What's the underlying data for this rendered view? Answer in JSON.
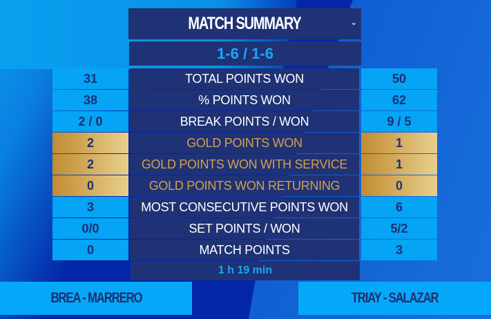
{
  "header": {
    "title": "MATCH SUMMARY",
    "dropdown_icon": "chevron-down-icon"
  },
  "score": "1-6 / 1-6",
  "stats": [
    {
      "label": "TOTAL POINTS WON",
      "left": "31",
      "right": "50",
      "type": "normal"
    },
    {
      "label": "% POINTS WON",
      "left": "38",
      "right": "62",
      "type": "normal"
    },
    {
      "label": "BREAK POINTS / WON",
      "left": "2 / 0",
      "right": "9 / 5",
      "type": "normal"
    },
    {
      "label": "GOLD POINTS WON",
      "left": "2",
      "right": "1",
      "type": "gold"
    },
    {
      "label": "GOLD POINTS WON WITH SERVICE",
      "left": "2",
      "right": "1",
      "type": "gold"
    },
    {
      "label": "GOLD POINTS WON RETURNING",
      "left": "0",
      "right": "0",
      "type": "gold"
    },
    {
      "label": "MOST CONSECUTIVE POINTS WON",
      "left": "3",
      "right": "6",
      "type": "normal"
    },
    {
      "label": "SET POINTS / WON",
      "left": "0/0",
      "right": "5/2",
      "type": "normal"
    },
    {
      "label": "MATCH POINTS",
      "left": "0",
      "right": "3",
      "type": "normal"
    }
  ],
  "duration": "1 h 19 min",
  "teams": {
    "left": "BREA - MARRERO",
    "right": "TRIAY - SALAZAR"
  },
  "colors": {
    "accent": "#05a4f5",
    "panel": "#1f3275",
    "gold": "#d4a04a",
    "background": "#0326a8"
  }
}
